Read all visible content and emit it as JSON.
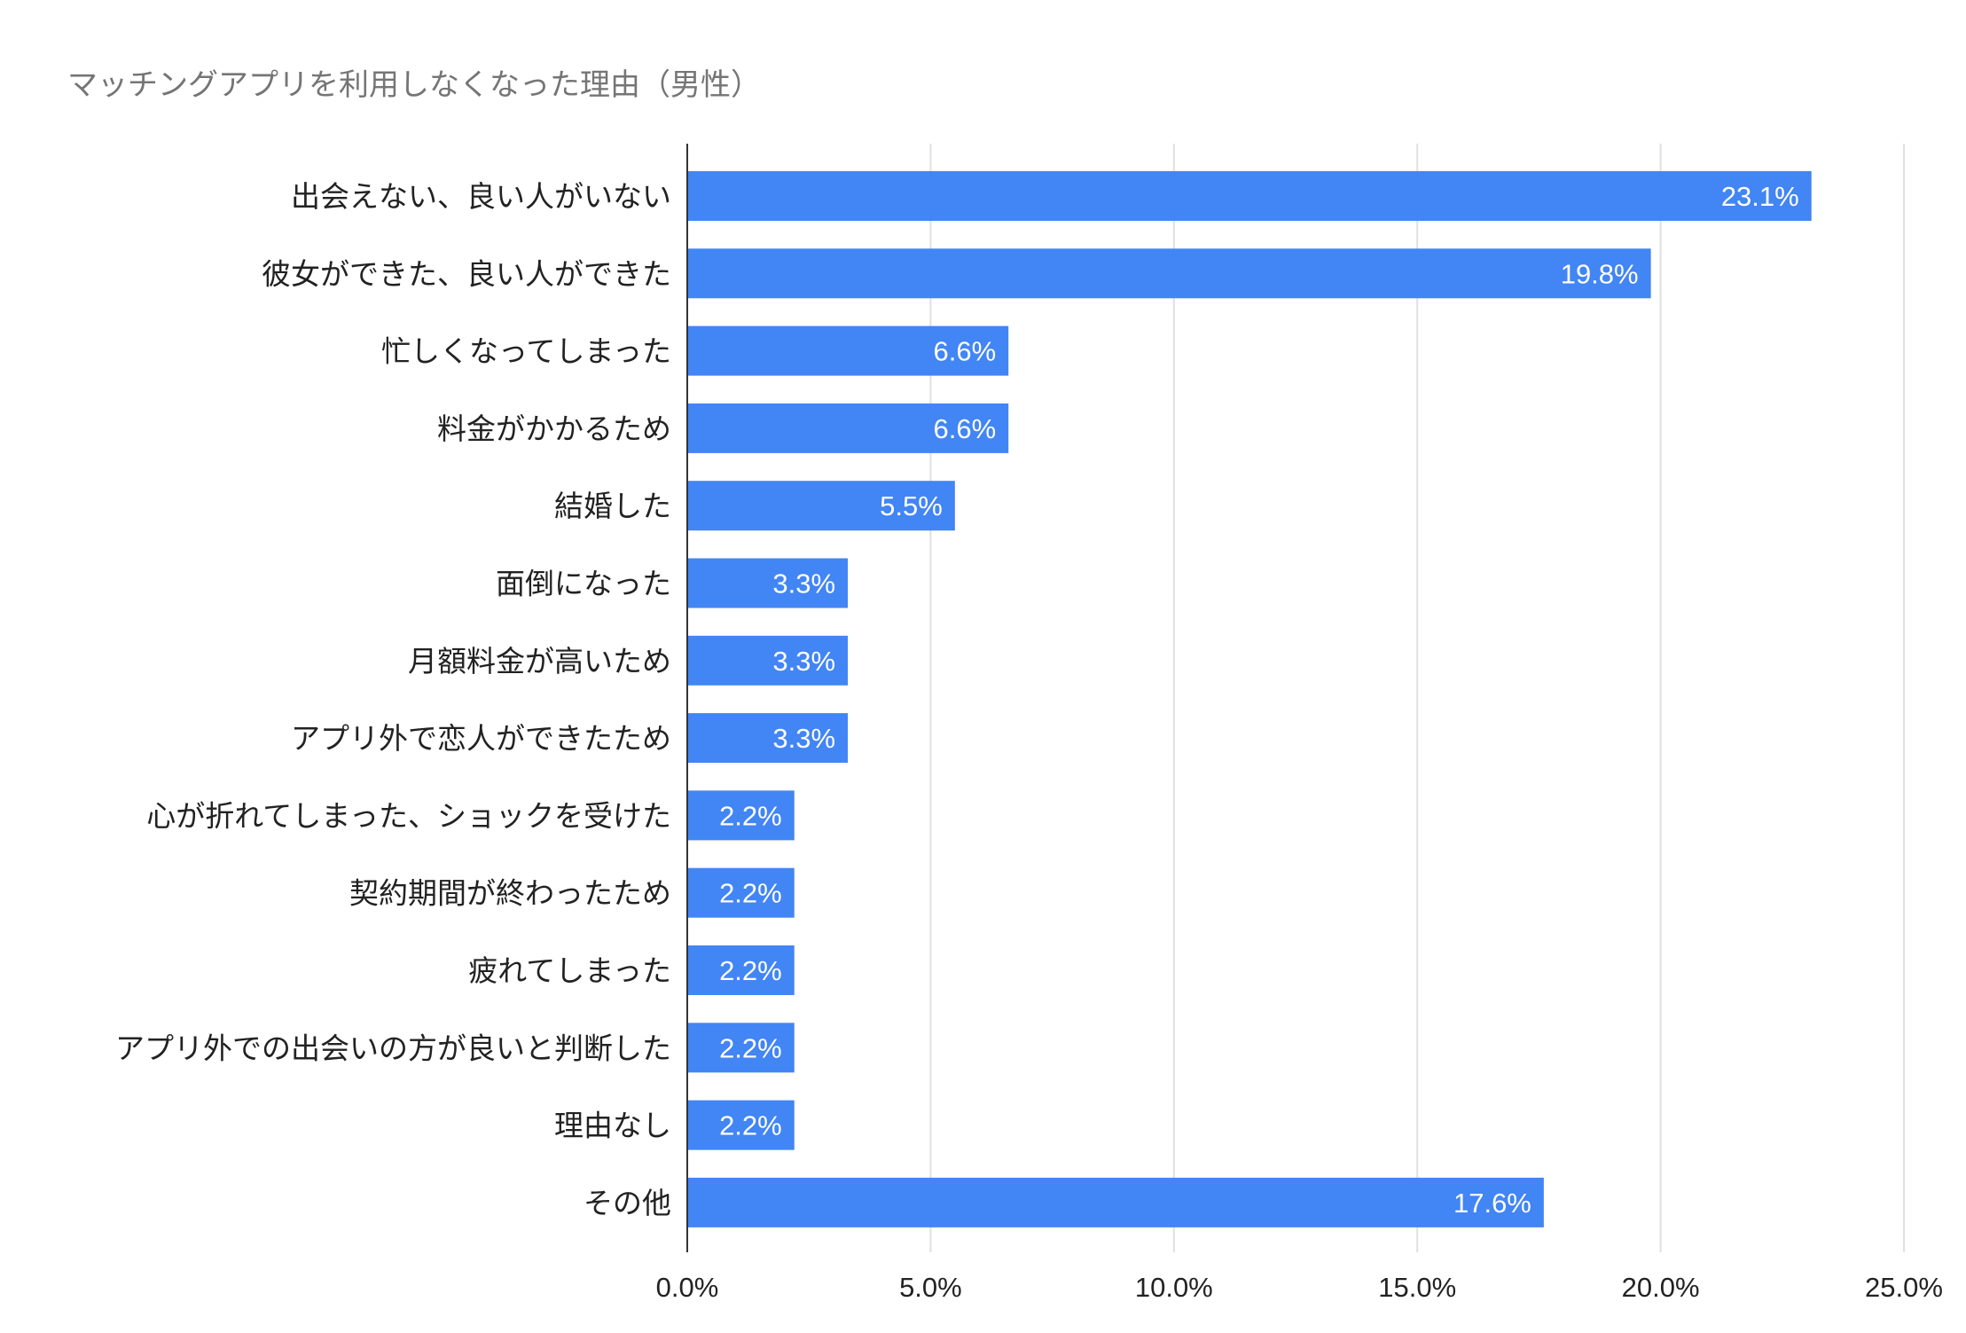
{
  "chart_data": {
    "type": "bar",
    "orientation": "horizontal",
    "title": "マッチングアプリを利用しなくなった理由（男性）",
    "categories": [
      "出会えない、良い人がいない",
      "彼女ができた、良い人ができた",
      "忙しくなってしまった",
      "料金がかかるため",
      "結婚した",
      "面倒になった",
      "月額料金が高いため",
      "アプリ外で恋人ができたため",
      "心が折れてしまった、ショックを受けた",
      "契約期間が終わったため",
      "疲れてしまった",
      "アプリ外での出会いの方が良いと判断した",
      "理由なし",
      "その他"
    ],
    "values": [
      23.1,
      19.8,
      6.6,
      6.6,
      5.5,
      3.3,
      3.3,
      3.3,
      2.2,
      2.2,
      2.2,
      2.2,
      2.2,
      17.6
    ],
    "value_labels": [
      "23.1%",
      "19.8%",
      "6.6%",
      "6.6%",
      "5.5%",
      "3.3%",
      "3.3%",
      "3.3%",
      "2.2%",
      "2.2%",
      "2.2%",
      "2.2%",
      "2.2%",
      "17.6%"
    ],
    "xlim": [
      0,
      25
    ],
    "x_ticks": [
      0,
      5,
      10,
      15,
      20,
      25
    ],
    "x_tick_labels": [
      "0.0%",
      "5.0%",
      "10.0%",
      "15.0%",
      "20.0%",
      "25.0%"
    ],
    "xlabel": "",
    "ylabel": "",
    "grid": "vertical",
    "legend": "none",
    "bar_color": "#4285f4",
    "label_color": "#ffffff",
    "gridline_color": "#e0e0e0",
    "axis_color": "#333333"
  }
}
